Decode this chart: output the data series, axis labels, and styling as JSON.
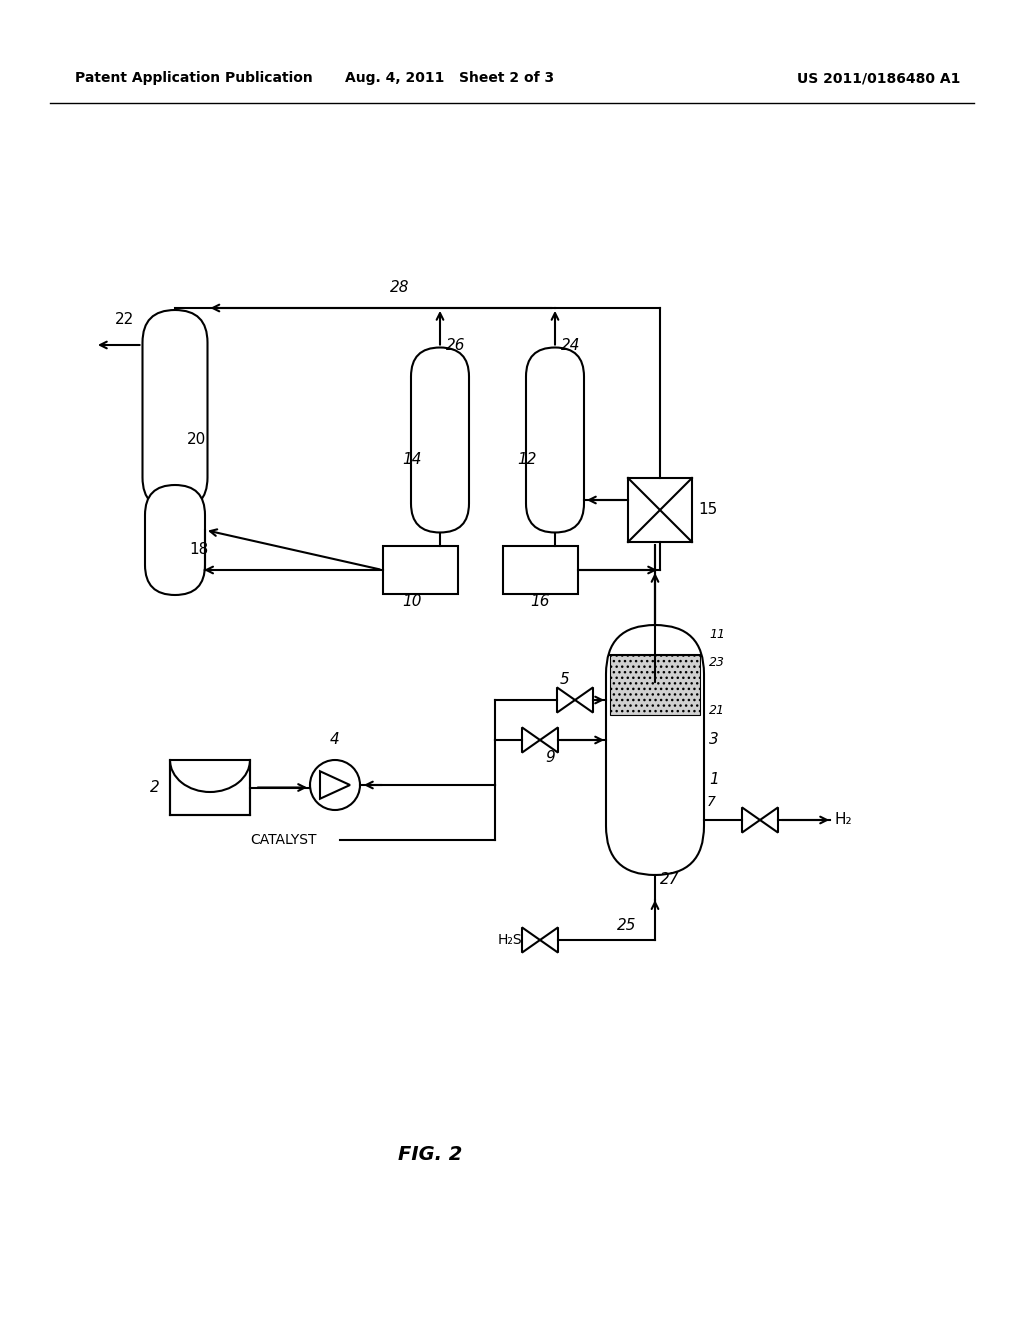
{
  "title_left": "Patent Application Publication",
  "title_mid": "Aug. 4, 2011   Sheet 2 of 3",
  "title_right": "US 2011/0186480 A1",
  "fig_label": "FIG. 2",
  "background": "#ffffff",
  "line_color": "#000000",
  "line_width": 1.5,
  "text_color": "#000000"
}
